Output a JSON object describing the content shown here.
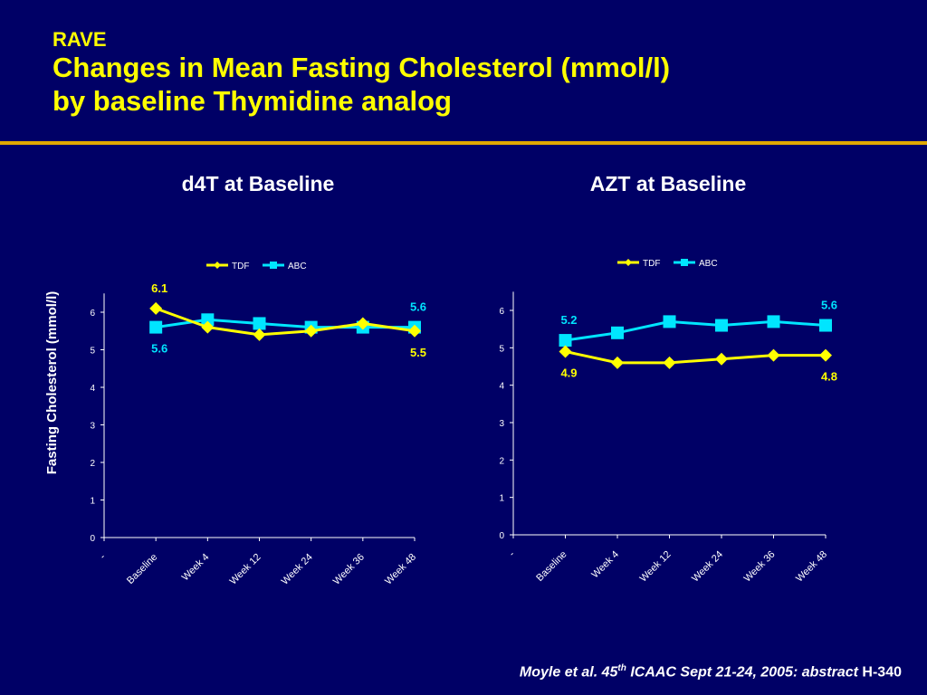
{
  "header": {
    "super": "RAVE",
    "title_line1": "Changes in Mean Fasting Cholesterol (mmol/l)",
    "title_line2": "by baseline Thymidine analog"
  },
  "footer": {
    "italic_part": "Moyle et al. 45",
    "sup": "th",
    "italic_rest": " ICAAC Sept 21-24, 2005: abstract ",
    "tail": "H-340"
  },
  "colors": {
    "background": "#000066",
    "title": "#FFFF00",
    "rule": "#E0A800",
    "tdf": "#FFFF00",
    "abc": "#00E5FF"
  },
  "chart_data": [
    {
      "type": "line",
      "title": "d4T at Baseline",
      "ylabel": "Fasting Cholesterol  (mmol/l)",
      "ylim": [
        0,
        6.5
      ],
      "yticks": [
        "0",
        "1",
        "2",
        "3",
        "4",
        "5",
        "6"
      ],
      "categories": [
        "-",
        "Baseline",
        "Week 4",
        "Week 12",
        "Week 24",
        "Week 36",
        "Week 48"
      ],
      "legend": "top-center",
      "series": [
        {
          "name": "TDF",
          "values": [
            null,
            6.1,
            5.6,
            5.4,
            5.5,
            5.7,
            5.5
          ],
          "labels": [
            null,
            "6.1",
            null,
            null,
            null,
            null,
            "5.5"
          ]
        },
        {
          "name": "ABC",
          "values": [
            null,
            5.6,
            5.8,
            5.7,
            5.6,
            5.6,
            5.6
          ],
          "labels": [
            null,
            "5.6",
            null,
            null,
            null,
            null,
            "5.6"
          ]
        }
      ]
    },
    {
      "type": "line",
      "title": "AZT at Baseline",
      "ylabel": "",
      "ylim": [
        0,
        6.5
      ],
      "yticks": [
        "0",
        "1",
        "2",
        "3",
        "4",
        "5",
        "6"
      ],
      "categories": [
        "-",
        "Baseline",
        "Week 4",
        "Week 12",
        "Week 24",
        "Week 36",
        "Week 48"
      ],
      "legend": "top-center",
      "series": [
        {
          "name": "TDF",
          "values": [
            null,
            4.9,
            4.6,
            4.6,
            4.7,
            4.8,
            4.8
          ],
          "labels": [
            null,
            "4.9",
            null,
            null,
            null,
            null,
            "4.8"
          ]
        },
        {
          "name": "ABC",
          "values": [
            null,
            5.2,
            5.4,
            5.7,
            5.6,
            5.7,
            5.6
          ],
          "labels": [
            null,
            "5.2",
            null,
            null,
            null,
            null,
            "5.6"
          ]
        }
      ]
    }
  ]
}
